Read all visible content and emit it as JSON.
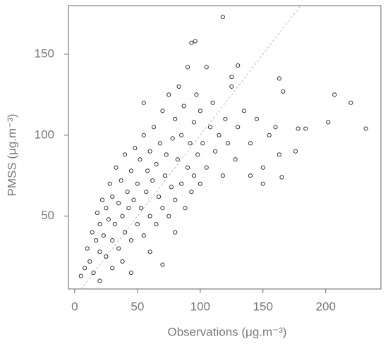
{
  "chart_data": {
    "type": "scatter",
    "x_label": "Observations (μg.m⁻³)",
    "y_label": "PMSS (μg.m⁻³)",
    "color": "#333333",
    "identity_line": true,
    "xlim": [
      -5,
      244
    ],
    "xticks": [
      0,
      50,
      100,
      150,
      200
    ],
    "ylim": [
      5,
      180
    ],
    "yticks": [
      50,
      100,
      150
    ],
    "x": [
      5,
      8,
      10,
      12,
      14,
      15,
      17,
      18,
      20,
      20,
      22,
      23,
      25,
      25,
      27,
      28,
      30,
      30,
      32,
      33,
      35,
      35,
      37,
      38,
      40,
      40,
      42,
      43,
      45,
      45,
      47,
      48,
      50,
      50,
      52,
      53,
      55,
      55,
      57,
      58,
      60,
      60,
      62,
      63,
      65,
      65,
      67,
      68,
      70,
      70,
      72,
      73,
      75,
      75,
      77,
      78,
      80,
      80,
      82,
      83,
      85,
      85,
      87,
      88,
      90,
      90,
      92,
      93,
      95,
      95,
      97,
      98,
      100,
      100,
      102,
      105,
      108,
      110,
      112,
      115,
      118,
      120,
      122,
      125,
      128,
      130,
      135,
      140,
      145,
      150,
      155,
      160,
      93,
      96,
      118,
      232,
      220,
      207,
      202,
      178,
      184,
      176,
      165,
      163,
      163,
      166,
      130,
      105,
      70,
      45,
      30,
      60,
      80,
      20,
      140,
      150,
      125,
      38,
      55
    ],
    "y": [
      13,
      18,
      30,
      22,
      40,
      15,
      35,
      52,
      28,
      45,
      60,
      38,
      25,
      55,
      48,
      70,
      35,
      62,
      45,
      80,
      30,
      58,
      72,
      50,
      40,
      88,
      65,
      55,
      35,
      78,
      60,
      92,
      45,
      70,
      85,
      55,
      38,
      100,
      65,
      78,
      50,
      90,
      72,
      105,
      45,
      82,
      62,
      95,
      55,
      115,
      75,
      88,
      50,
      125,
      68,
      98,
      60,
      110,
      85,
      130,
      70,
      100,
      118,
      55,
      80,
      142,
      95,
      65,
      108,
      75,
      125,
      88,
      70,
      115,
      95,
      80,
      105,
      120,
      90,
      100,
      75,
      110,
      95,
      130,
      85,
      105,
      115,
      95,
      110,
      80,
      100,
      105,
      157,
      158,
      173,
      104,
      120,
      125,
      108,
      104,
      104,
      90,
      74,
      88,
      135,
      127,
      143,
      142,
      20,
      15,
      18,
      28,
      40,
      10,
      75,
      70,
      136,
      22,
      120
    ]
  }
}
